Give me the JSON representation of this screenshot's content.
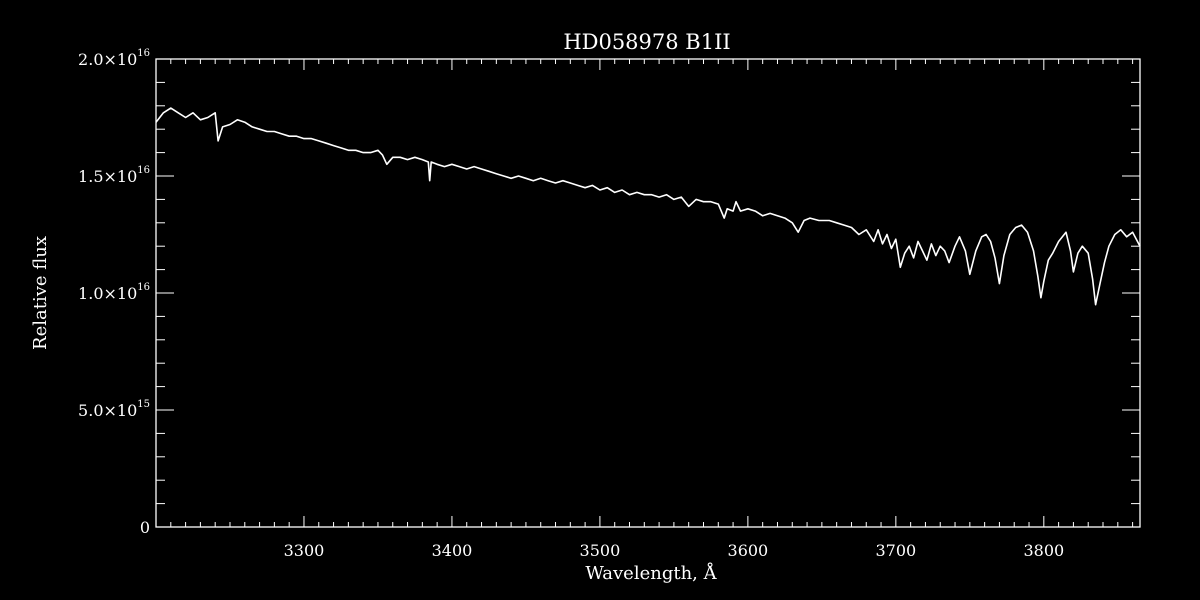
{
  "chart_data": {
    "type": "line",
    "title": "HD058978   B1II",
    "xlabel": "Wavelength, Å",
    "ylabel": "Relative flux",
    "xlim": [
      3200,
      3865
    ],
    "ylim": [
      0,
      2e+16
    ],
    "x_ticks": [
      {
        "value": 3300,
        "label": "3300"
      },
      {
        "value": 3400,
        "label": "3400"
      },
      {
        "value": 3500,
        "label": "3500"
      },
      {
        "value": 3600,
        "label": "3600"
      },
      {
        "value": 3700,
        "label": "3700"
      },
      {
        "value": 3800,
        "label": "3800"
      }
    ],
    "y_ticks": [
      {
        "value": 0,
        "mantissa": "0",
        "exponent": ""
      },
      {
        "value": 5000000000000000.0,
        "mantissa": "5.0×10",
        "exponent": "15"
      },
      {
        "value": 1e+16,
        "mantissa": "1.0×10",
        "exponent": "16"
      },
      {
        "value": 1.5e+16,
        "mantissa": "1.5×10",
        "exponent": "16"
      },
      {
        "value": 2e+16,
        "mantissa": "2.0×10",
        "exponent": "16"
      }
    ],
    "grid": false,
    "colors": {
      "background": "#000000",
      "foreground": "#ffffff"
    },
    "series": [
      {
        "x": [
          3200,
          3205,
          3210,
          3215,
          3220,
          3225,
          3230,
          3235,
          3240,
          3242,
          3245,
          3250,
          3255,
          3260,
          3265,
          3270,
          3275,
          3280,
          3285,
          3290,
          3295,
          3300,
          3305,
          3310,
          3315,
          3320,
          3325,
          3330,
          3335,
          3340,
          3345,
          3350,
          3353,
          3356,
          3360,
          3365,
          3370,
          3375,
          3380,
          3384,
          3385,
          3386,
          3390,
          3395,
          3400,
          3405,
          3410,
          3415,
          3420,
          3425,
          3430,
          3435,
          3440,
          3445,
          3450,
          3455,
          3460,
          3465,
          3470,
          3475,
          3480,
          3485,
          3490,
          3495,
          3500,
          3505,
          3510,
          3515,
          3520,
          3525,
          3530,
          3535,
          3540,
          3545,
          3550,
          3555,
          3560,
          3565,
          3570,
          3575,
          3580,
          3584,
          3586,
          3590,
          3592,
          3595,
          3600,
          3605,
          3610,
          3615,
          3620,
          3625,
          3630,
          3634,
          3638,
          3642,
          3648,
          3655,
          3660,
          3665,
          3670,
          3675,
          3680,
          3685,
          3688,
          3691,
          3694,
          3697,
          3700,
          3703,
          3706,
          3709,
          3712,
          3715,
          3718,
          3721,
          3724,
          3727,
          3730,
          3733,
          3736,
          3740,
          3743,
          3747,
          3750,
          3754,
          3758,
          3761,
          3764,
          3767,
          3770,
          3773,
          3777,
          3781,
          3785,
          3789,
          3793,
          3796,
          3798,
          3800,
          3803,
          3806,
          3810,
          3815,
          3818,
          3820,
          3823,
          3826,
          3830,
          3833,
          3835,
          3838,
          3841,
          3844,
          3848,
          3852,
          3856,
          3860,
          3865
        ],
        "y": [
          1.73e+16,
          1.77e+16,
          1.79e+16,
          1.77e+16,
          1.75e+16,
          1.77e+16,
          1.74e+16,
          1.75e+16,
          1.77e+16,
          1.65e+16,
          1.71e+16,
          1.72e+16,
          1.74e+16,
          1.73e+16,
          1.71e+16,
          1.7e+16,
          1.69e+16,
          1.69e+16,
          1.68e+16,
          1.67e+16,
          1.67e+16,
          1.66e+16,
          1.66e+16,
          1.65e+16,
          1.64e+16,
          1.63e+16,
          1.62e+16,
          1.61e+16,
          1.61e+16,
          1.6e+16,
          1.6e+16,
          1.61e+16,
          1.59e+16,
          1.55e+16,
          1.58e+16,
          1.58e+16,
          1.57e+16,
          1.58e+16,
          1.57e+16,
          1.56e+16,
          1.48e+16,
          1.56e+16,
          1.55e+16,
          1.54e+16,
          1.55e+16,
          1.54e+16,
          1.53e+16,
          1.54e+16,
          1.53e+16,
          1.52e+16,
          1.51e+16,
          1.5e+16,
          1.49e+16,
          1.5e+16,
          1.49e+16,
          1.48e+16,
          1.49e+16,
          1.48e+16,
          1.47e+16,
          1.48e+16,
          1.47e+16,
          1.46e+16,
          1.45e+16,
          1.46e+16,
          1.44e+16,
          1.45e+16,
          1.43e+16,
          1.44e+16,
          1.42e+16,
          1.43e+16,
          1.42e+16,
          1.42e+16,
          1.41e+16,
          1.42e+16,
          1.4e+16,
          1.41e+16,
          1.37e+16,
          1.4e+16,
          1.39e+16,
          1.39e+16,
          1.38e+16,
          1.32e+16,
          1.36e+16,
          1.35e+16,
          1.39e+16,
          1.35e+16,
          1.36e+16,
          1.35e+16,
          1.33e+16,
          1.34e+16,
          1.33e+16,
          1.32e+16,
          1.3e+16,
          1.26e+16,
          1.31e+16,
          1.32e+16,
          1.31e+16,
          1.31e+16,
          1.3e+16,
          1.29e+16,
          1.28e+16,
          1.25e+16,
          1.27e+16,
          1.22e+16,
          1.27e+16,
          1.21e+16,
          1.25e+16,
          1.19e+16,
          1.23e+16,
          1.11e+16,
          1.17e+16,
          1.2e+16,
          1.15e+16,
          1.22e+16,
          1.18e+16,
          1.14e+16,
          1.21e+16,
          1.16e+16,
          1.2e+16,
          1.18e+16,
          1.13e+16,
          1.2e+16,
          1.24e+16,
          1.18e+16,
          1.08e+16,
          1.18e+16,
          1.24e+16,
          1.25e+16,
          1.22e+16,
          1.15e+16,
          1.04e+16,
          1.16e+16,
          1.25e+16,
          1.28e+16,
          1.29e+16,
          1.26e+16,
          1.18e+16,
          1.07e+16,
          9800000000000000.0,
          1.05e+16,
          1.14e+16,
          1.17e+16,
          1.22e+16,
          1.26e+16,
          1.18e+16,
          1.09e+16,
          1.17e+16,
          1.2e+16,
          1.17e+16,
          1.06e+16,
          9500000000000000.0,
          1.04e+16,
          1.13e+16,
          1.2e+16,
          1.25e+16,
          1.27e+16,
          1.24e+16,
          1.26e+16,
          1.2e+16
        ]
      }
    ]
  }
}
